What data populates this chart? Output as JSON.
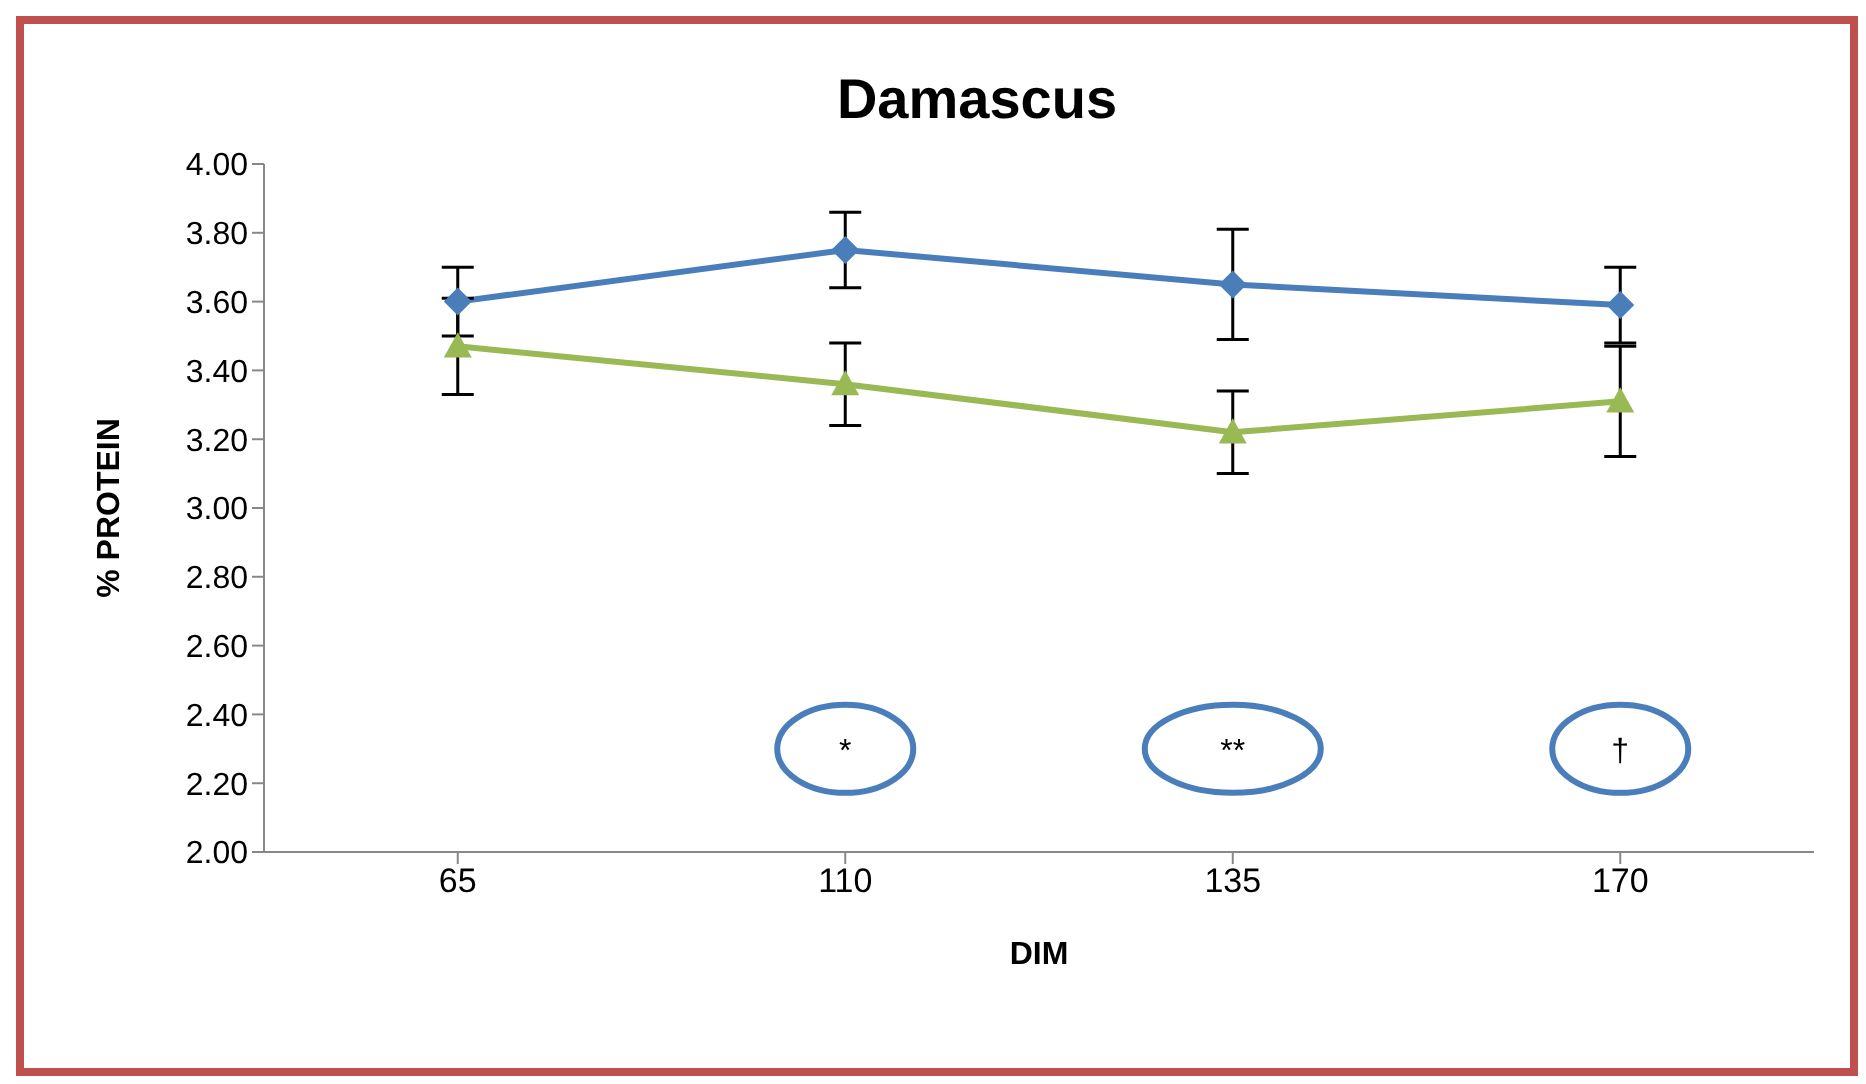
{
  "chart_data": {
    "type": "line",
    "title": "Damascus",
    "xlabel": "DIM",
    "ylabel": "% PROTEIN",
    "categories": [
      "65",
      "110",
      "135",
      "170"
    ],
    "series": [
      {
        "color": "#4a7ebb",
        "marker": "diamond",
        "values": [
          3.6,
          3.75,
          3.65,
          3.59
        ],
        "errors": [
          0.1,
          0.11,
          0.16,
          0.11
        ]
      },
      {
        "color": "#98b954",
        "marker": "triangle",
        "values": [
          3.47,
          3.36,
          3.22,
          3.31
        ],
        "errors": [
          0.14,
          0.12,
          0.12,
          0.16
        ]
      }
    ],
    "ylim": [
      2.0,
      4.0
    ],
    "yticks": [
      {
        "value": 2.0,
        "label": "2.00"
      },
      {
        "value": 2.2,
        "label": "2.20"
      },
      {
        "value": 2.4,
        "label": "2.40"
      },
      {
        "value": 2.6,
        "label": "2.60"
      },
      {
        "value": 2.8,
        "label": "2.80"
      },
      {
        "value": 3.0,
        "label": "3.00"
      },
      {
        "value": 3.2,
        "label": "3.20"
      },
      {
        "value": 3.4,
        "label": "3.40"
      },
      {
        "value": 3.6,
        "label": "3.60"
      },
      {
        "value": 3.8,
        "label": "3.80"
      },
      {
        "value": 4.0,
        "label": "4.00"
      }
    ],
    "grid": false,
    "legend": false,
    "annotations": [
      "*",
      "**",
      "†"
    ]
  }
}
